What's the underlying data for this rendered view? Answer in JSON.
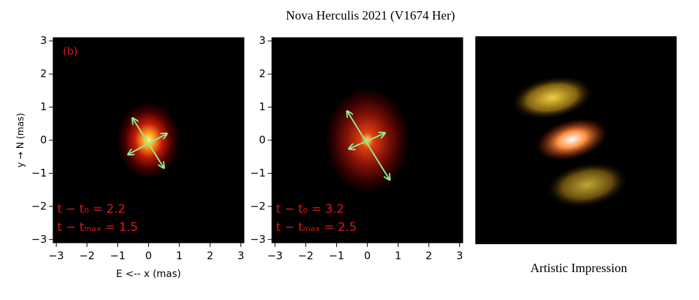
{
  "title": "Nova Herculis 2021 (V1674 Her)",
  "chart_data": [
    {
      "type": "image",
      "panel_label": "(b)",
      "xlabel": "E <-- x (mas)",
      "ylabel": "y → N (mas)",
      "annotations": [
        "t − t₀ = 2.2",
        "t − tₘₐₓ = 1.5"
      ],
      "xlim": [
        -3.1,
        3.1
      ],
      "ylim": [
        -3.1,
        3.1
      ],
      "xticks": [
        {
          "value": -3,
          "label": "−3"
        },
        {
          "value": -2,
          "label": "−2"
        },
        {
          "value": -1,
          "label": "−1"
        },
        0,
        1,
        2,
        3
      ],
      "yticks": [
        {
          "value": -3,
          "label": "−3"
        },
        {
          "value": -2,
          "label": "−2"
        },
        {
          "value": -1,
          "label": "−1"
        },
        0,
        1,
        2,
        3
      ]
    },
    {
      "type": "image",
      "annotations": [
        "t − t₀ = 3.2",
        "t − tₘₐₓ = 2.5"
      ],
      "xlim": [
        -3.1,
        3.1
      ],
      "ylim": [
        -3.1,
        3.1
      ],
      "xticks": [
        {
          "value": -3,
          "label": "−3"
        },
        {
          "value": -2,
          "label": "−2"
        },
        {
          "value": -1,
          "label": "−1"
        },
        0,
        1,
        2,
        3
      ],
      "yticks": [
        {
          "value": -3,
          "label": "−3"
        },
        {
          "value": -2,
          "label": "−2"
        },
        {
          "value": -1,
          "label": "−1"
        },
        0,
        1,
        2,
        3
      ]
    }
  ],
  "artwork": {
    "caption": "Artistic Impression"
  }
}
